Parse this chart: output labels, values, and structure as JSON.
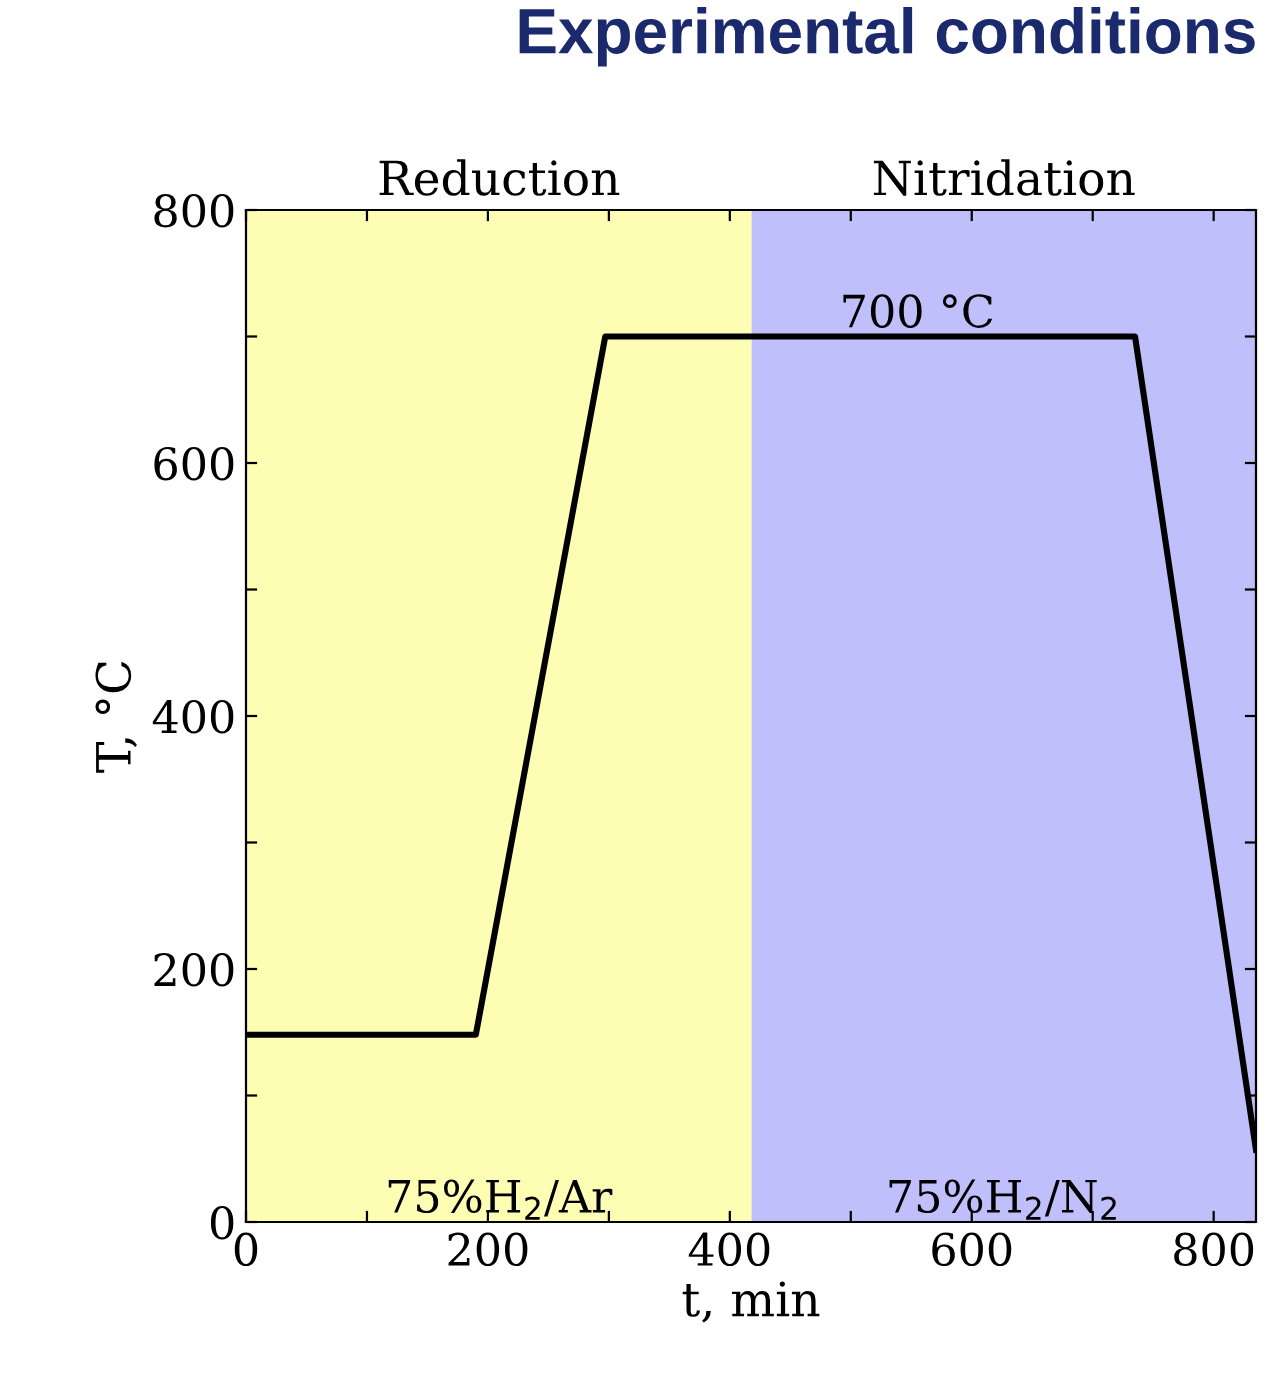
{
  "chart_data": {
    "type": "line",
    "title": "Experimental conditions",
    "xlabel": "t, min",
    "ylabel": "T, °C",
    "x": [
      0,
      190,
      297,
      735,
      835
    ],
    "series": [
      {
        "color": "#000000",
        "values": [
          148,
          148,
          700,
          700,
          57
        ]
      }
    ],
    "xlim": [
      0,
      835
    ],
    "ylim": [
      0,
      800
    ],
    "xticks": [
      0,
      {
        "value": 100,
        "label": null
      },
      200,
      {
        "value": 300,
        "label": null
      },
      400,
      {
        "value": 500,
        "label": null
      },
      600,
      {
        "value": 700,
        "label": null
      },
      800
    ],
    "yticks": [
      0,
      {
        "value": 100,
        "label": null
      },
      200,
      {
        "value": 300,
        "label": null
      },
      400,
      {
        "value": 500,
        "label": null
      },
      600,
      {
        "value": 700,
        "label": null
      },
      800
    ],
    "bands": [
      {
        "axis": "x",
        "from": 0,
        "to": 418,
        "label": "Reduction",
        "color": "#fdfdb4"
      },
      {
        "axis": "x",
        "from": 418,
        "to": 835,
        "label": "Nitridation",
        "color": "#bfbffb"
      }
    ],
    "annotations": [
      {
        "text": "700 °C",
        "x": 555,
        "y": 700
      },
      {
        "text": "75%H$_{2}$/Ar",
        "x": 209,
        "y": 0
      },
      {
        "text": "75%H$_{2}$/N$_{2}$",
        "x": 626,
        "y": 0
      }
    ],
    "grid": false,
    "legend": false,
    "marker": "none",
    "line_style": "solid"
  }
}
